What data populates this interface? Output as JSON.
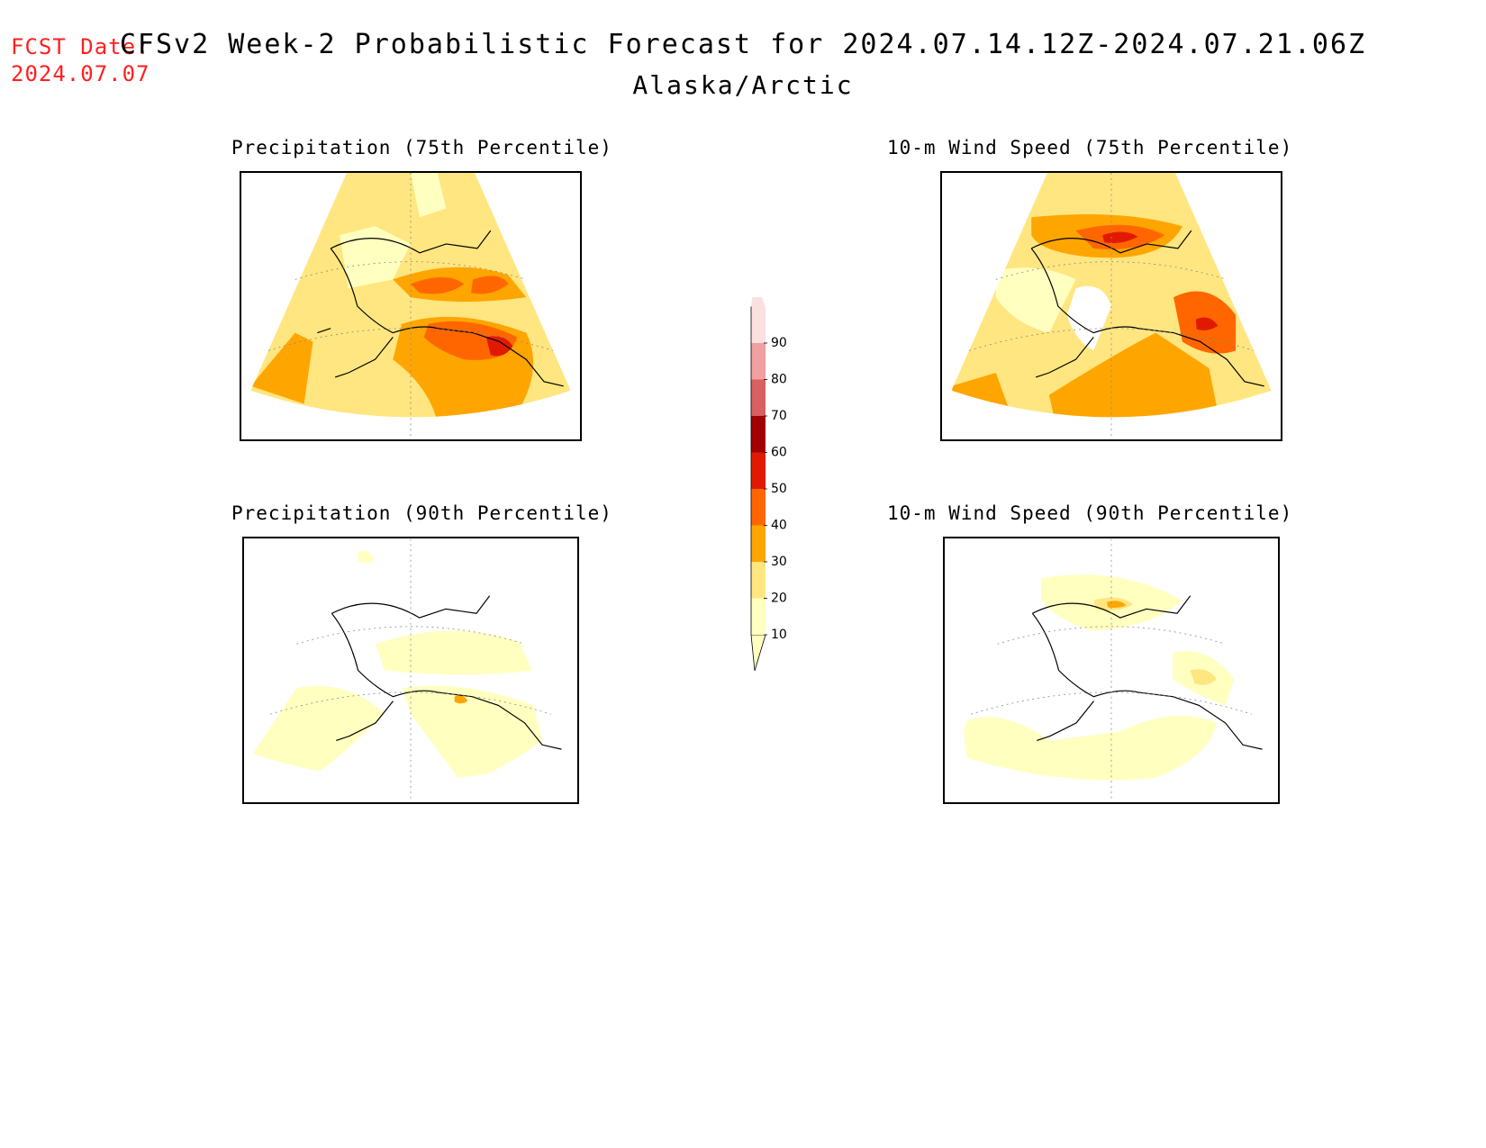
{
  "header": {
    "fcst_label": "FCST Date:",
    "fcst_date": "2024.07.07",
    "title": "CFSv2 Week-2 Probabilistic Forecast for 2024.07.14.12Z-2024.07.21.06Z",
    "region": "Alaska/Arctic"
  },
  "panels": [
    {
      "title": "Precipitation (75th Percentile)"
    },
    {
      "title": "10-m Wind Speed (75th Percentile)"
    },
    {
      "title": "Precipitation (90th Percentile)"
    },
    {
      "title": "10-m Wind Speed (90th Percentile)"
    }
  ],
  "colorbar": {
    "levels": [
      "10",
      "20",
      "30",
      "40",
      "50",
      "60",
      "70",
      "80",
      "90"
    ],
    "colors": {
      "c10": "#ffffc0",
      "c20": "#ffe680",
      "c30": "#ffa500",
      "c40": "#ff6600",
      "c50": "#e01a00",
      "c60": "#a00000",
      "c70": "#d96060",
      "c80": "#f0a0a0",
      "c90": "#fbe0e0"
    }
  }
}
